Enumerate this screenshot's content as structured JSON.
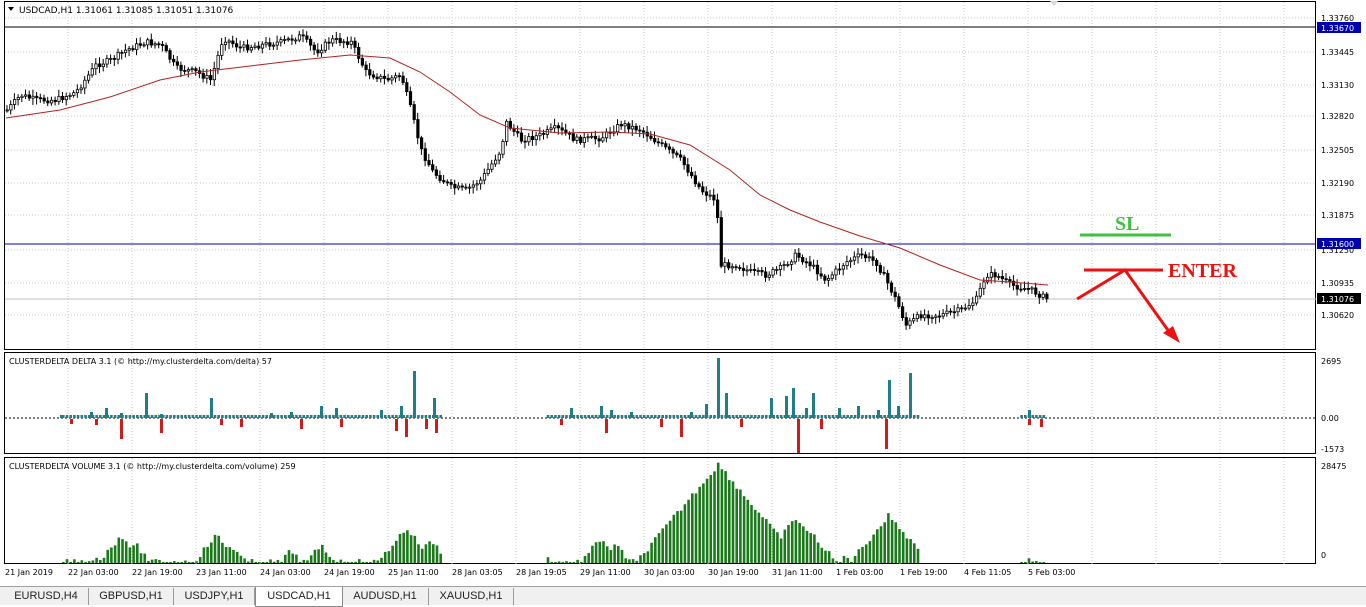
{
  "main_pane": {
    "title": "USDCAD,H1  1.31061 1.31085 1.31051 1.31076",
    "y_ticks": [
      "1.33760",
      "1.33445",
      "1.33130",
      "1.32820",
      "1.32505",
      "1.32190",
      "1.31875",
      "1.31250",
      "1.30935",
      "1.30620"
    ],
    "hline_top_label": "1.33670",
    "hline_blue_label": "1.31600",
    "price_label": "1.31076",
    "sl_label": "SL",
    "enter_label": "ENTER",
    "colors": {
      "blue_line": "#0000b0",
      "ma": "#b22222",
      "sl": "#40c040",
      "enter": "#ee1111",
      "price_box": "#000000"
    }
  },
  "delta_pane": {
    "title": "CLUSTERDELTA DELTA 3.1 (© http://my.clusterdelta.com/delta) 57",
    "y_ticks": [
      "2695",
      "0.00",
      "-1573"
    ],
    "colors": {
      "positive": "#1f7f85",
      "negative": "#d11a1a"
    }
  },
  "volume_pane": {
    "title": "CLUSTERDELTA VOLUME 3.1 (© http://my.clusterdelta.com/volume) 259",
    "y_ticks": [
      "28475",
      "0"
    ],
    "colors": {
      "bar": "#1a7a1a"
    }
  },
  "x_axis_labels": [
    "21 Jan 2019",
    "22 Jan 03:00",
    "22 Jan 19:00",
    "23 Jan 11:00",
    "24 Jan 03:00",
    "24 Jan 19:00",
    "25 Jan 11:00",
    "28 Jan 03:05",
    "28 Jan 19:05",
    "29 Jan 11:00",
    "30 Jan 03:00",
    "30 Jan 19:00",
    "31 Jan 11:00",
    "1 Feb 03:00",
    "1 Feb 19:00",
    "4 Feb 11:05",
    "5 Feb 03:00"
  ],
  "tabs": [
    {
      "label": "EURUSD,H4",
      "active": false
    },
    {
      "label": "GBPUSD,H1",
      "active": false
    },
    {
      "label": "USDJPY,H1",
      "active": false
    },
    {
      "label": "USDCAD,H1",
      "active": true
    },
    {
      "label": "AUDUSD,H1",
      "active": false
    },
    {
      "label": "XAUUSD,H1",
      "active": false
    }
  ]
}
